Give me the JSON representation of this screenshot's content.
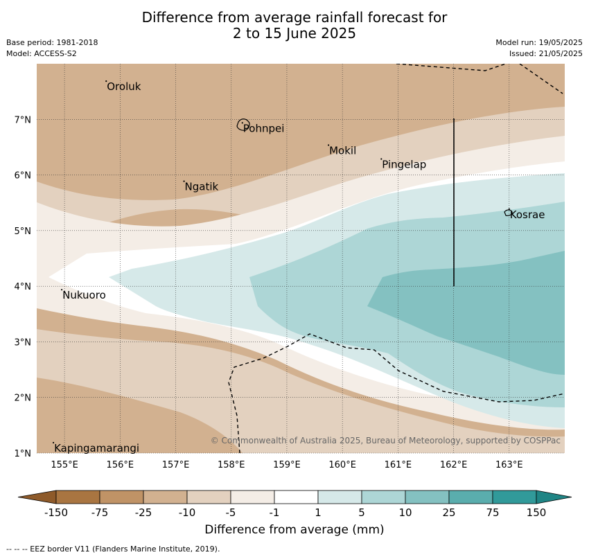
{
  "title_line1": "Difference from average rainfall forecast for",
  "title_line2": "2 to 15 June 2025",
  "base_period": "Base period: 1981-2018",
  "model": "Model: ACCESS-S2",
  "model_run": "Model run: 19/05/2025",
  "issued": "Issued: 21/05/2025",
  "copyright": "© Commonwealth of Australia 2025, Bureau of Meteorology, supported by COSPPac",
  "places": [
    {
      "name": "Oroluk",
      "lon": 155.75,
      "lat": 7.6
    },
    {
      "name": "Pohnpei",
      "lon": 158.2,
      "lat": 6.85
    },
    {
      "name": "Mokil",
      "lon": 159.75,
      "lat": 6.45
    },
    {
      "name": "Pingelap",
      "lon": 160.7,
      "lat": 6.2
    },
    {
      "name": "Ngatik",
      "lon": 157.15,
      "lat": 5.8
    },
    {
      "name": "Kosrae",
      "lon": 163.0,
      "lat": 5.3
    },
    {
      "name": "Nukuoro",
      "lon": 154.95,
      "lat": 3.85
    },
    {
      "name": "Kapingamarangi",
      "lon": 154.8,
      "lat": 1.1
    }
  ],
  "axes": {
    "x_ticks": [
      "155°E",
      "156°E",
      "157°E",
      "158°E",
      "159°E",
      "160°E",
      "161°E",
      "162°E",
      "163°E"
    ],
    "y_ticks": [
      "7°N",
      "6°N",
      "5°N",
      "4°N",
      "3°N",
      "2°N",
      "1°N"
    ],
    "lon_range": [
      154.5,
      164.0
    ],
    "lat_range": [
      1.0,
      8.0
    ]
  },
  "legend": {
    "title": "Difference from average (mm)",
    "tick_labels": [
      "-150",
      "-75",
      "-25",
      "-10",
      "-5",
      "-1",
      "1",
      "5",
      "10",
      "25",
      "75",
      "150"
    ],
    "colors": [
      "#a97541",
      "#c09366",
      "#d2b190",
      "#e3d1bf",
      "#f4ede6",
      "#ffffff",
      "#d6e9e9",
      "#add6d6",
      "#84c1c1",
      "#5aadad",
      "#319a9a"
    ],
    "extend_low_color": "#8e5a2a",
    "extend_high_color": "#1f8585"
  },
  "eez_legend": "--  --  -- EEZ border V11 (Flanders Marine Institute, 2019)."
}
